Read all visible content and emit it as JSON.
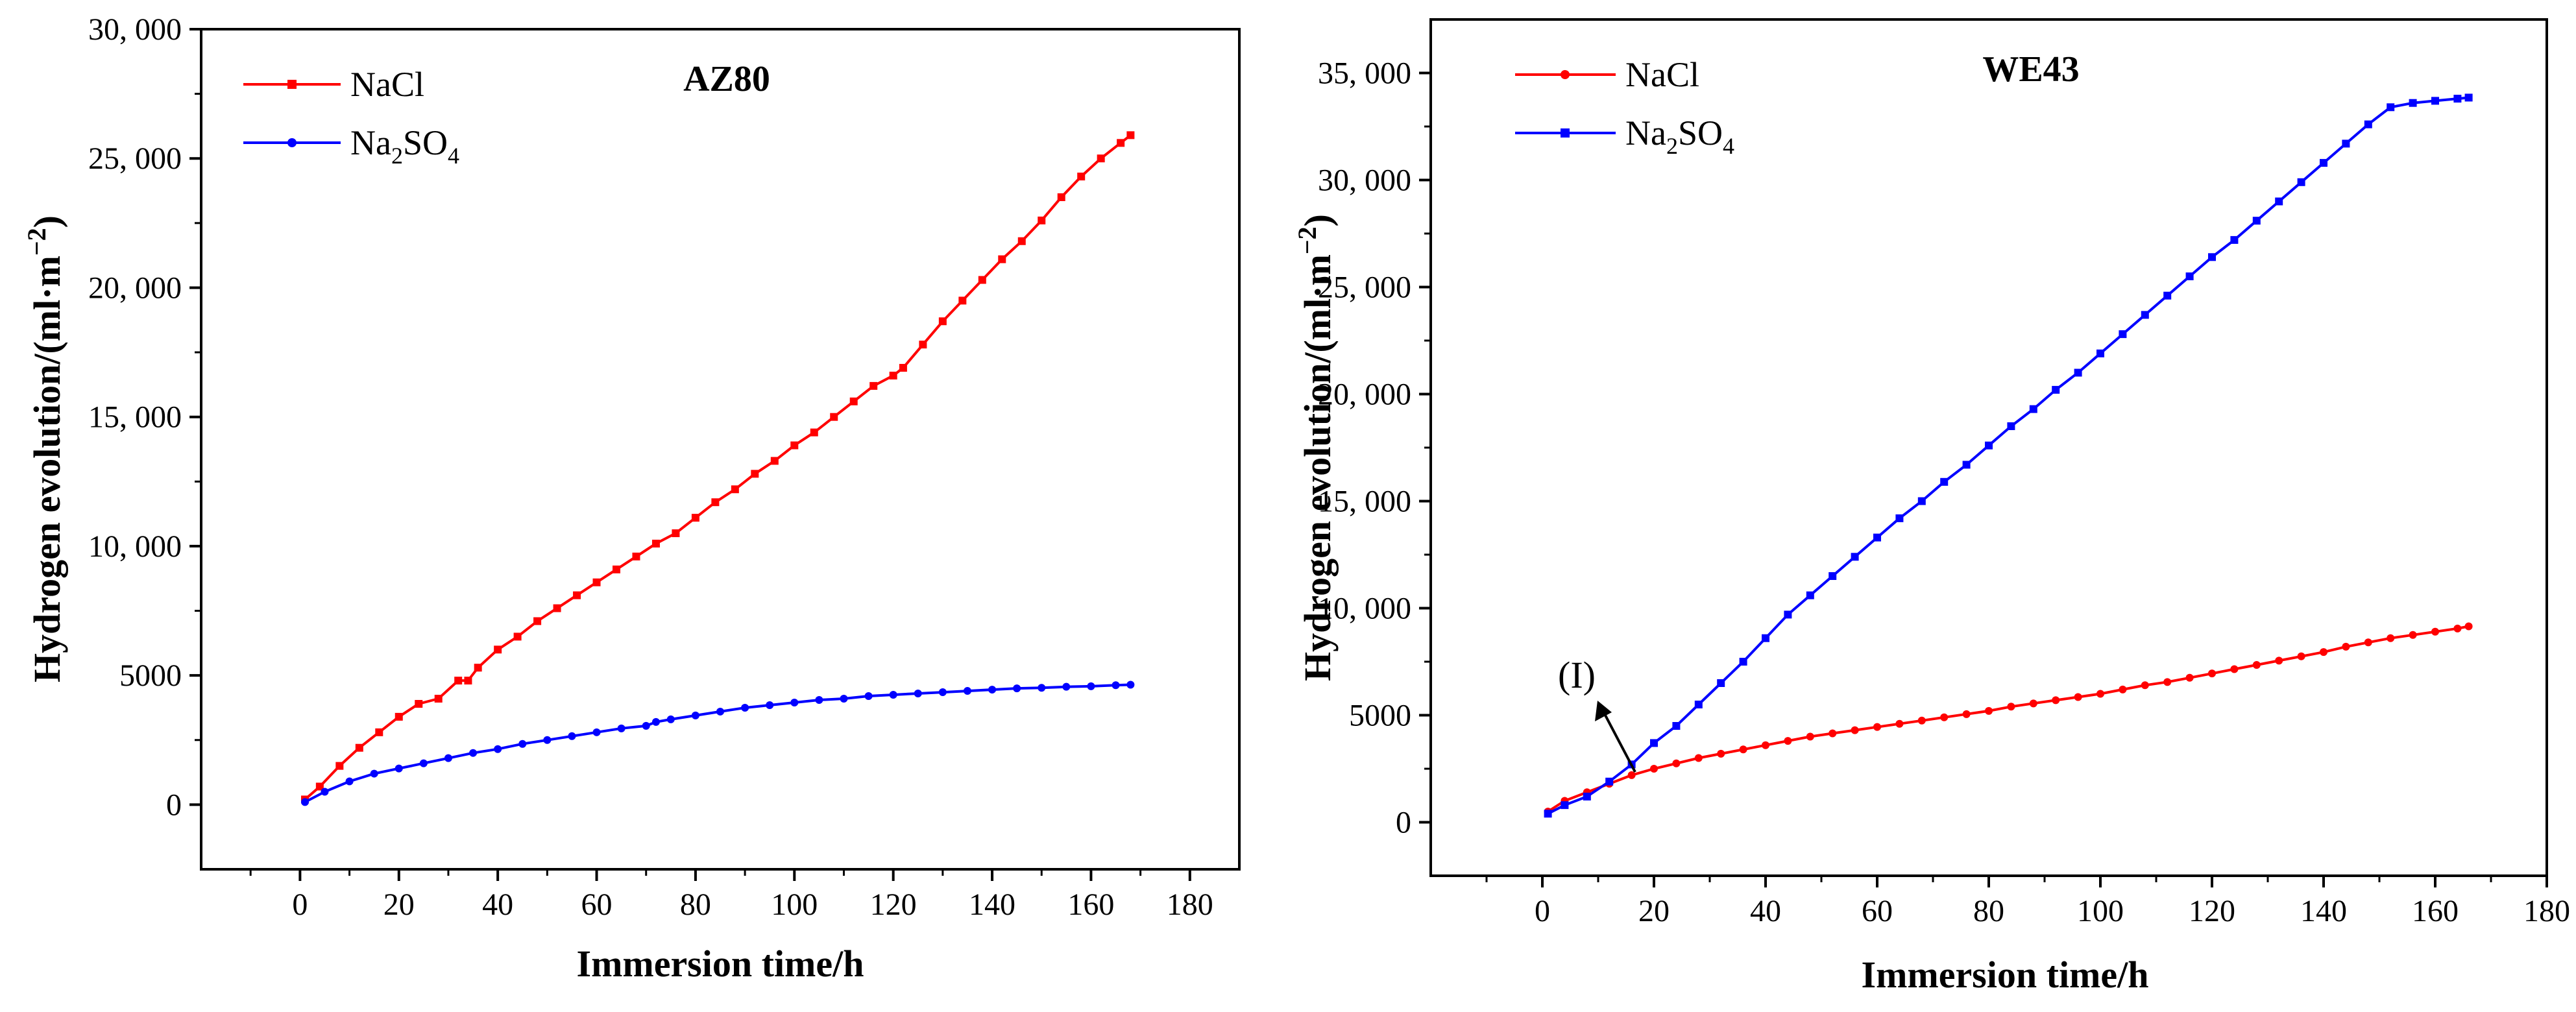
{
  "chart_data": [
    {
      "type": "line",
      "title": "AZ80",
      "xlabel": "Immersion time/h",
      "ylabel": "Hydrogen evolution/(ml·m",
      "ylabel_sup": "−2",
      "ylabel_tail": ")",
      "xlim": [
        -20,
        190
      ],
      "ylim": [
        -2500,
        30000
      ],
      "x_ticks": [
        0,
        20,
        40,
        60,
        80,
        100,
        120,
        140,
        160,
        180
      ],
      "x_tick_labels": [
        "0",
        "20",
        "40",
        "60",
        "80",
        "100",
        "120",
        "140",
        "160",
        "180"
      ],
      "y_ticks": [
        0,
        5000,
        10000,
        15000,
        20000,
        25000,
        30000
      ],
      "y_tick_labels": [
        "0",
        "5000",
        "10, 000",
        "15, 000",
        "20, 000",
        "25, 000",
        "30, 000"
      ],
      "legend_position": "top-left",
      "series": [
        {
          "name": "NaCl",
          "name_base": "NaCl",
          "color": "#ff0000",
          "marker": "square",
          "x": [
            1,
            4,
            8,
            12,
            16,
            20,
            24,
            28,
            32,
            34,
            36,
            40,
            44,
            48,
            52,
            56,
            60,
            64,
            68,
            72,
            76,
            80,
            84,
            88,
            92,
            96,
            100,
            104,
            108,
            112,
            116,
            120,
            122,
            126,
            130,
            134,
            138,
            142,
            146,
            150,
            154,
            158,
            162,
            166,
            168
          ],
          "y": [
            200,
            700,
            1500,
            2200,
            2800,
            3400,
            3900,
            4100,
            4800,
            4800,
            5300,
            6000,
            6500,
            7100,
            7600,
            8100,
            8600,
            9100,
            9600,
            10100,
            10500,
            11100,
            11700,
            12200,
            12800,
            13300,
            13900,
            14400,
            15000,
            15600,
            16200,
            16600,
            16900,
            17800,
            18700,
            19500,
            20300,
            21100,
            21800,
            22600,
            23500,
            24300,
            25000,
            25600,
            25900
          ]
        },
        {
          "name": "Na2SO4",
          "name_base": "Na",
          "name_sub1": "2",
          "name_mid": "SO",
          "name_sub2": "4",
          "color": "#0000ff",
          "marker": "circle",
          "x": [
            1,
            5,
            10,
            15,
            20,
            25,
            30,
            35,
            40,
            45,
            50,
            55,
            60,
            65,
            70,
            72,
            75,
            80,
            85,
            90,
            95,
            100,
            105,
            110,
            115,
            120,
            125,
            130,
            135,
            140,
            145,
            150,
            155,
            160,
            165,
            168
          ],
          "y": [
            100,
            500,
            900,
            1200,
            1400,
            1600,
            1800,
            2000,
            2150,
            2350,
            2500,
            2650,
            2800,
            2950,
            3050,
            3200,
            3300,
            3450,
            3600,
            3750,
            3850,
            3950,
            4050,
            4100,
            4200,
            4250,
            4300,
            4350,
            4400,
            4450,
            4500,
            4520,
            4560,
            4580,
            4620,
            4640
          ]
        }
      ]
    },
    {
      "type": "line",
      "title": "WE43",
      "xlabel": "Immersion time/h",
      "ylabel": "Hydrogen evolution/(ml·m",
      "ylabel_sup": "−2",
      "ylabel_tail": ")",
      "xlim": [
        -20,
        180
      ],
      "ylim": [
        -2500,
        37500
      ],
      "x_ticks": [
        0,
        20,
        40,
        60,
        80,
        100,
        120,
        140,
        160,
        180
      ],
      "x_tick_labels": [
        "0",
        "20",
        "40",
        "60",
        "80",
        "100",
        "120",
        "140",
        "160",
        "180"
      ],
      "y_ticks": [
        0,
        5000,
        10000,
        15000,
        20000,
        25000,
        30000,
        35000
      ],
      "y_tick_labels": [
        "0",
        "5000",
        "10, 000",
        "15, 000",
        "20, 000",
        "25, 000",
        "30, 000",
        "35, 000"
      ],
      "legend_position": "top-left",
      "annotation": {
        "text": "(I)",
        "x": 12,
        "y": 2000
      },
      "series": [
        {
          "name": "NaCl",
          "name_base": "NaCl",
          "color": "#ff0000",
          "marker": "circle",
          "x": [
            1,
            4,
            8,
            12,
            16,
            20,
            24,
            28,
            32,
            36,
            40,
            44,
            48,
            52,
            56,
            60,
            64,
            68,
            72,
            76,
            80,
            84,
            88,
            92,
            96,
            100,
            104,
            108,
            112,
            116,
            120,
            124,
            128,
            132,
            136,
            140,
            144,
            148,
            152,
            156,
            160,
            164,
            166
          ],
          "y": [
            500,
            1000,
            1400,
            1800,
            2200,
            2500,
            2750,
            3000,
            3200,
            3400,
            3600,
            3800,
            4000,
            4150,
            4300,
            4450,
            4600,
            4750,
            4900,
            5050,
            5200,
            5400,
            5550,
            5700,
            5850,
            6000,
            6200,
            6400,
            6550,
            6750,
            6950,
            7150,
            7350,
            7550,
            7750,
            7950,
            8200,
            8400,
            8600,
            8750,
            8900,
            9050,
            9150
          ]
        },
        {
          "name": "Na2SO4",
          "name_base": "Na",
          "name_sub1": "2",
          "name_mid": "SO",
          "name_sub2": "4",
          "color": "#0000ff",
          "marker": "square",
          "x": [
            1,
            4,
            8,
            12,
            16,
            20,
            24,
            28,
            32,
            36,
            40,
            44,
            48,
            52,
            56,
            60,
            64,
            68,
            72,
            76,
            80,
            84,
            88,
            92,
            96,
            100,
            104,
            108,
            112,
            116,
            120,
            124,
            128,
            132,
            136,
            140,
            144,
            148,
            152,
            156,
            160,
            164,
            166
          ],
          "y": [
            400,
            800,
            1200,
            1900,
            2700,
            3700,
            4500,
            5500,
            6500,
            7500,
            8600,
            9700,
            10600,
            11500,
            12400,
            13300,
            14200,
            15000,
            15900,
            16700,
            17600,
            18500,
            19300,
            20200,
            21000,
            21900,
            22800,
            23700,
            24600,
            25500,
            26400,
            27200,
            28100,
            29000,
            29900,
            30800,
            31700,
            32600,
            33400,
            33600,
            33700,
            33800,
            33850
          ]
        }
      ]
    }
  ]
}
